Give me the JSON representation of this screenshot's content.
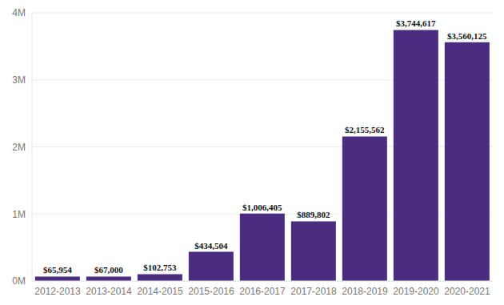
{
  "chart_data": {
    "type": "bar",
    "categories": [
      "2012-2013",
      "2013-2014",
      "2014-2015",
      "2015-2016",
      "2016-2017",
      "2017-2018",
      "2018-2019",
      "2019-2020",
      "2020-2021"
    ],
    "values": [
      65954,
      67000,
      102753,
      434504,
      1006405,
      889802,
      2155562,
      3744617,
      3560125
    ],
    "value_labels": [
      "$65,954",
      "$67,000",
      "$102,753",
      "$434,504",
      "$1,006,405",
      "$889,802",
      "$2,155,562",
      "$3,744,617",
      "$3,560,125"
    ],
    "data_labels": true,
    "color": "#4b2c80",
    "ylim": [
      0,
      4000000
    ],
    "yticks": [
      {
        "value": 0,
        "label": "0M"
      },
      {
        "value": 1000000,
        "label": "1M"
      },
      {
        "value": 2000000,
        "label": "2M"
      },
      {
        "value": 3000000,
        "label": "3M"
      },
      {
        "value": 4000000,
        "label": "4M"
      }
    ],
    "grid": true
  }
}
